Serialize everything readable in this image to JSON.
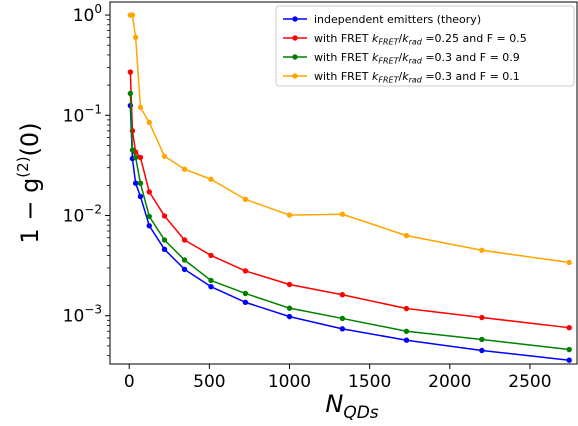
{
  "chart_data": {
    "type": "line",
    "title": "",
    "xlabel_parts": {
      "base": "N",
      "sub": "QDs"
    },
    "ylabel_parts": {
      "prefix": "1 − g",
      "sup": "(2)",
      "suffix": "(0)"
    },
    "xscale": "linear",
    "yscale": "log",
    "xlim": [
      -120,
      2800
    ],
    "ylim": [
      0.00033,
      1.35
    ],
    "xticks": [
      0,
      500,
      1000,
      1500,
      2000,
      2500
    ],
    "xtick_labels": [
      "0",
      "500",
      "1000",
      "1500",
      "2000",
      "2500"
    ],
    "yticks": [
      0.001,
      0.01,
      0.1,
      1
    ],
    "ytick_labels": [
      {
        "base": "10",
        "exp": "−3"
      },
      {
        "base": "10",
        "exp": "−2"
      },
      {
        "base": "10",
        "exp": "−1"
      },
      {
        "base": "10",
        "exp": "0"
      }
    ],
    "grid": false,
    "legend_position": "top-right",
    "series": [
      {
        "name_parts": {
          "text": "independent emitters (theory)"
        },
        "color": "#0000ff",
        "x": [
          7,
          20,
          40,
          70,
          125,
          220,
          345,
          510,
          725,
          1000,
          1330,
          1730,
          2200,
          2745
        ],
        "y": [
          0.125,
          0.037,
          0.021,
          0.0155,
          0.0079,
          0.0046,
          0.0029,
          0.00195,
          0.00136,
          0.00098,
          0.00074,
          0.00057,
          0.00045,
          0.00036
        ]
      },
      {
        "name_parts": {
          "pre": "with FRET ",
          "k1": "k",
          "s1": "FRET",
          "slash": "/",
          "k2": "k",
          "s2": "rad",
          "post": " =0.25 and F = 0.5"
        },
        "color": "#ff0000",
        "x": [
          7,
          20,
          40,
          70,
          125,
          220,
          345,
          510,
          725,
          1000,
          1330,
          1730,
          2200,
          2745
        ],
        "y": [
          0.27,
          0.07,
          0.043,
          0.038,
          0.0172,
          0.0099,
          0.0057,
          0.004,
          0.0028,
          0.00205,
          0.00162,
          0.00118,
          0.00096,
          0.00076
        ]
      },
      {
        "name_parts": {
          "pre": "with FRET ",
          "k1": "k",
          "s1": "FRET",
          "slash": "/",
          "k2": "k",
          "s2": "rad",
          "post": " =0.3 and F = 0.9"
        },
        "color": "#008000",
        "x": [
          7,
          20,
          40,
          70,
          125,
          220,
          345,
          510,
          725,
          1000,
          1330,
          1730,
          2200,
          2745
        ],
        "y": [
          0.165,
          0.045,
          0.038,
          0.021,
          0.0098,
          0.0057,
          0.0036,
          0.00225,
          0.00167,
          0.00119,
          0.00094,
          0.0007,
          0.00058,
          0.00046
        ]
      },
      {
        "name_parts": {
          "pre": "with FRET ",
          "k1": "k",
          "s1": "FRET",
          "slash": "/",
          "k2": "k",
          "s2": "rad",
          "post": " =0.3 and F = 0.1"
        },
        "color": "#ffa500",
        "x": [
          7,
          20,
          40,
          70,
          125,
          220,
          345,
          510,
          725,
          1000,
          1330,
          1730,
          2200,
          2745
        ],
        "y": [
          1.0,
          1.0,
          0.6,
          0.12,
          0.085,
          0.039,
          0.029,
          0.023,
          0.0145,
          0.0101,
          0.0103,
          0.0063,
          0.0045,
          0.0034
        ]
      }
    ]
  }
}
